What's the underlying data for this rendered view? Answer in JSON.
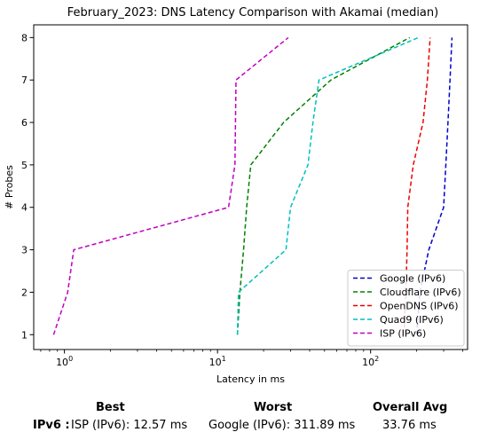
{
  "chart_data": {
    "type": "line",
    "title": "February_2023: DNS Latency Comparison with Akamai (median)",
    "xlabel": "Latency in ms",
    "ylabel": "# Probes",
    "xscale": "log",
    "xlim": [
      0.63,
      430
    ],
    "ylim": [
      0.65,
      8.3
    ],
    "xticks": [
      {
        "value": 1,
        "base": "10",
        "exp": "0"
      },
      {
        "value": 10,
        "base": "10",
        "exp": "1"
      },
      {
        "value": 100,
        "base": "10",
        "exp": "2"
      }
    ],
    "yticks": [
      1,
      2,
      3,
      4,
      5,
      6,
      7,
      8
    ],
    "legend_position": "lower-right",
    "grid": false,
    "series": [
      {
        "name": "Google (IPv6)",
        "color": "#0000cc",
        "x": [
          200,
          210,
          240,
          300,
          310,
          320,
          330,
          340
        ],
        "y": [
          1,
          2,
          3,
          4,
          5,
          6,
          7,
          8
        ]
      },
      {
        "name": "Cloudflare (IPv6)",
        "color": "#008000",
        "x": [
          13.5,
          14.0,
          14.8,
          15.5,
          16.5,
          27,
          55,
          180
        ],
        "y": [
          1,
          2,
          3,
          4,
          5,
          6,
          7,
          8
        ]
      },
      {
        "name": "OpenDNS (IPv6)",
        "color": "#ee0000",
        "x": [
          165,
          170,
          173,
          175,
          190,
          220,
          235,
          245
        ],
        "y": [
          1,
          2,
          3,
          4,
          5,
          6,
          7,
          8
        ]
      },
      {
        "name": "Quad9 (IPv6)",
        "color": "#00bfbf",
        "x": [
          13.5,
          13.7,
          28,
          30,
          39,
          42,
          46,
          205
        ],
        "y": [
          1,
          2,
          3,
          4,
          5,
          6,
          7,
          8
        ]
      },
      {
        "name": "ISP (IPv6)",
        "color": "#bf00bf",
        "x": [
          0.85,
          1.05,
          1.15,
          11.8,
          13.0,
          13.1,
          13.2,
          29
        ],
        "y": [
          1,
          2,
          3,
          4,
          5,
          6,
          7,
          8
        ]
      }
    ]
  },
  "summary": {
    "headers": {
      "best": "Best",
      "worst": "Worst",
      "overall": "Overall Avg"
    },
    "row_label": "IPv6 :",
    "best": "ISP (IPv6): 12.57 ms",
    "worst": "Google (IPv6): 311.89 ms",
    "overall": "33.76 ms"
  }
}
